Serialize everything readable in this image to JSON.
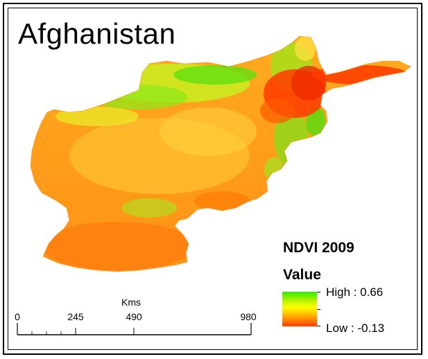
{
  "map": {
    "title": "Afghanistan"
  },
  "legend": {
    "title": "NDVI 2009",
    "subtitle": "Value",
    "high_label": "High : 0.66",
    "low_label": "Low : -0.13",
    "high_value": 0.66,
    "low_value": -0.13,
    "colors": {
      "high": "#2cf000",
      "mid_high": "#a8f000",
      "mid": "#ffff00",
      "mid_low": "#ffa500",
      "low": "#ff3a00"
    }
  },
  "scale_bar": {
    "unit": "Kms",
    "ticks": [
      "0",
      "245",
      "490",
      "980"
    ]
  },
  "colors": {
    "frame": "#000000",
    "background": "#ffffff",
    "land_base": "#ff9a1a"
  }
}
